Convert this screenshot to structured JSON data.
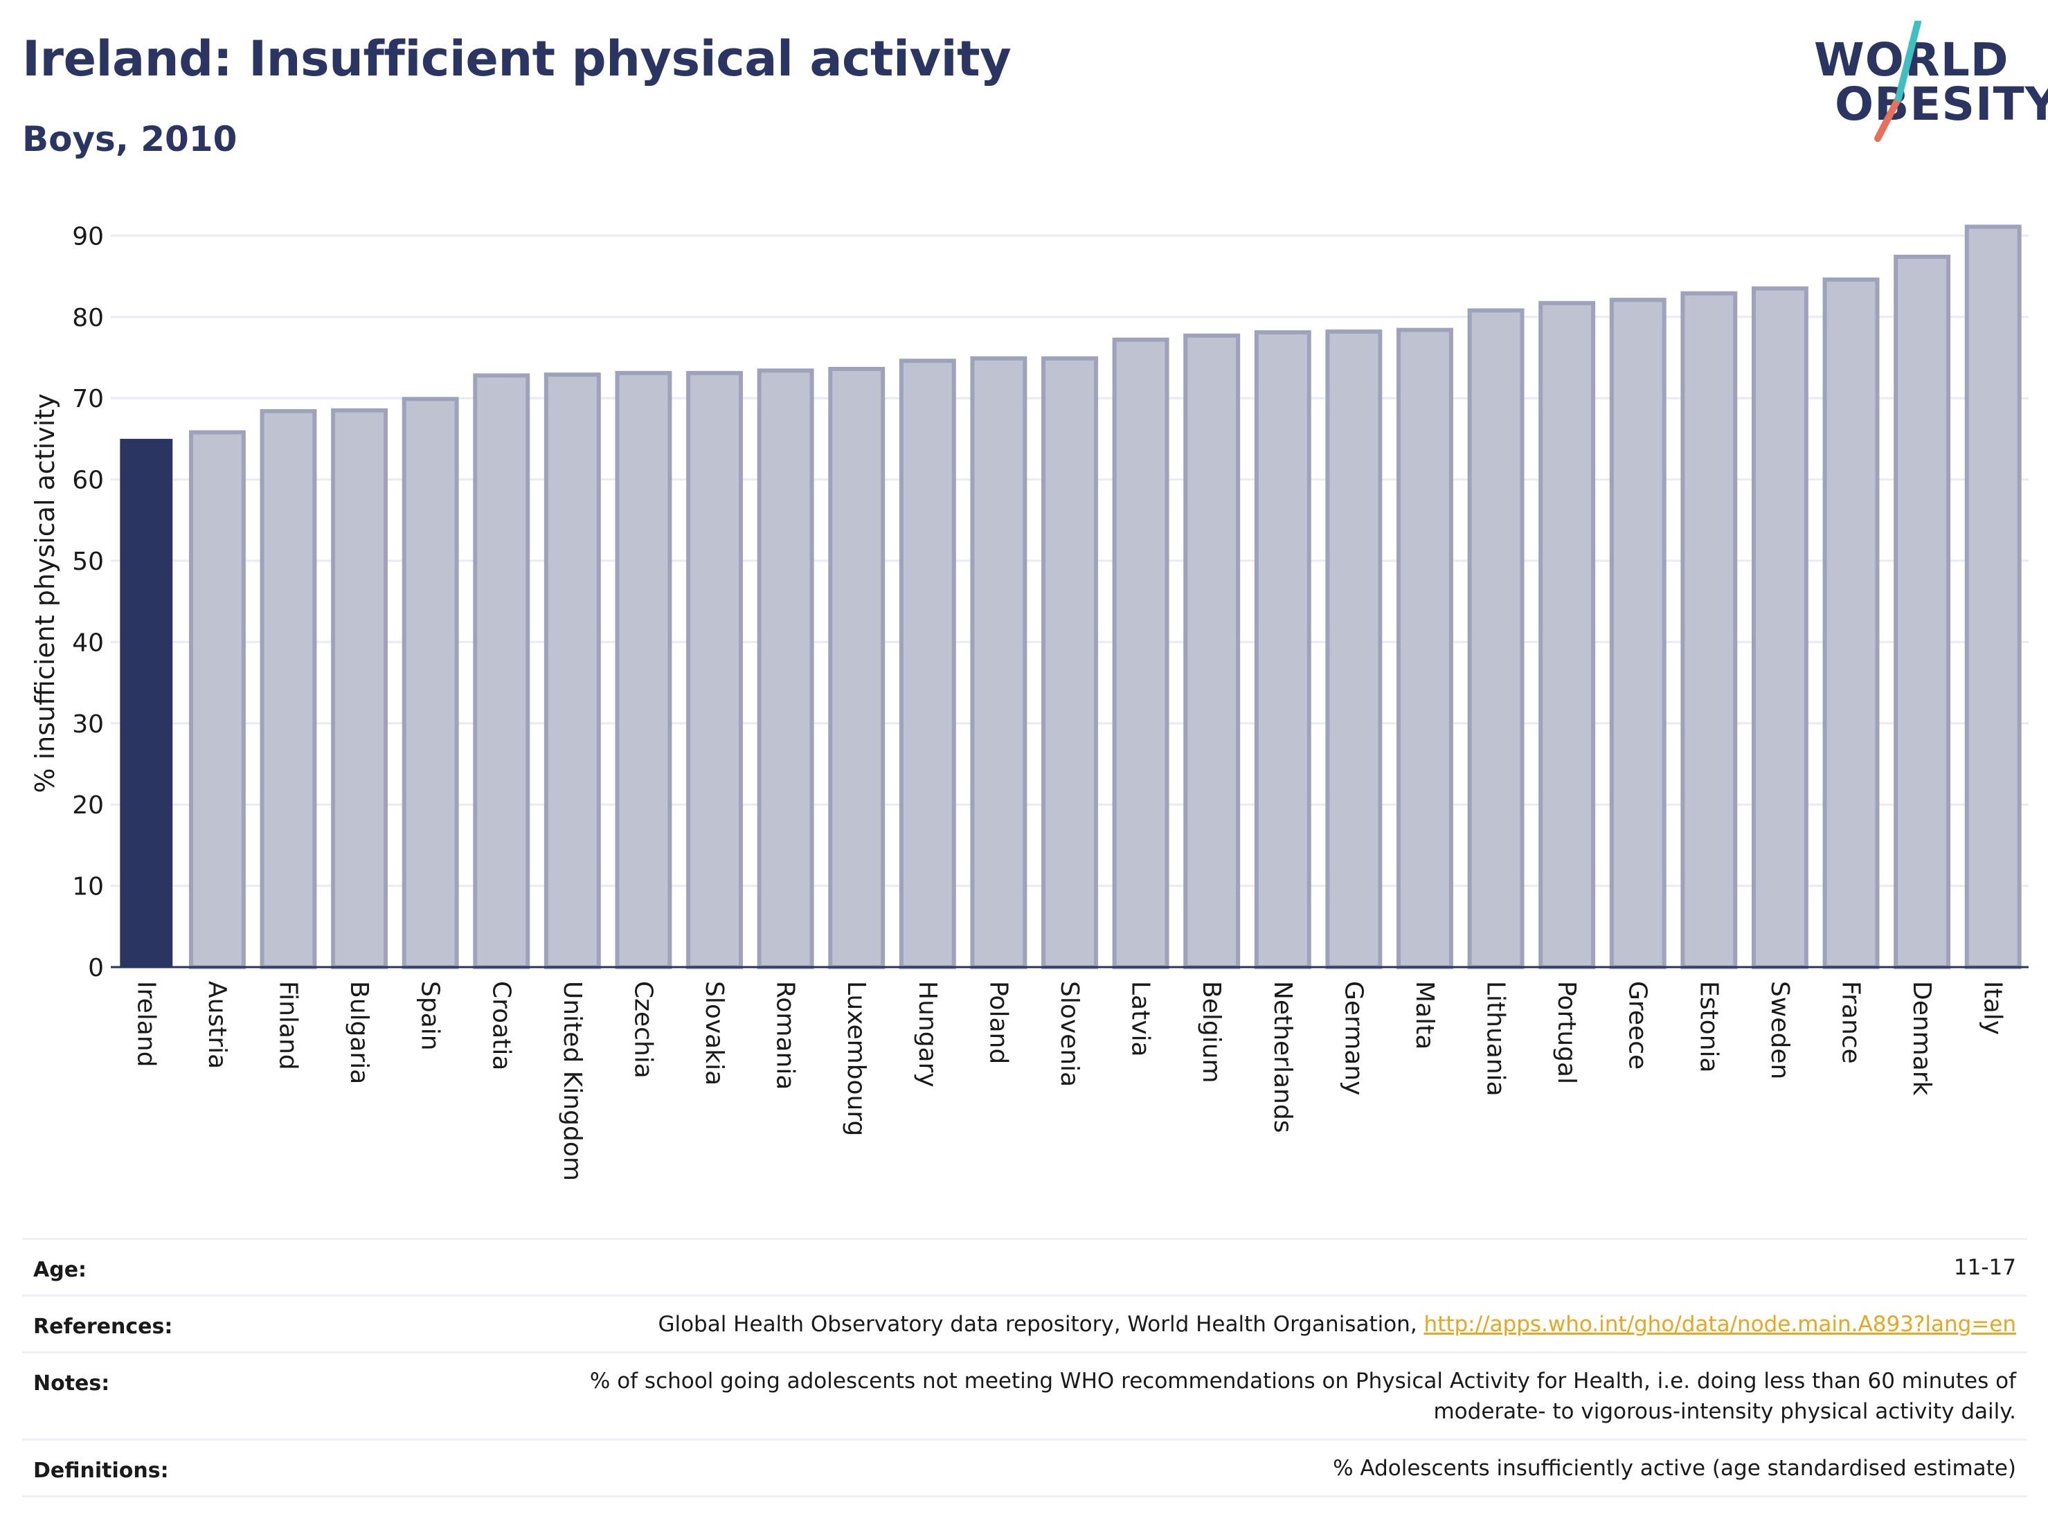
{
  "header": {
    "title": "Ireland: Insufficient physical activity",
    "subtitle": "Boys, 2010"
  },
  "logo": {
    "line1": "WORLD",
    "line2": "OBESITY",
    "colors": {
      "text": "#2b3561",
      "slash_teal": "#3fbfbf",
      "slash_coral": "#e8705a"
    }
  },
  "colors": {
    "highlight_bar": "#2b3561",
    "bar_fill": "#bfc2d0",
    "bar_stroke": "#9ea3bb",
    "link": "#e8a623"
  },
  "chart_data": {
    "type": "bar",
    "title": "Ireland: Insufficient physical activity",
    "subtitle": "Boys, 2010",
    "xlabel": "",
    "ylabel": "% insufficient physical activity",
    "ylim": [
      0,
      92
    ],
    "yticks": [
      0,
      10,
      20,
      30,
      40,
      50,
      60,
      70,
      80,
      90
    ],
    "grid": true,
    "highlight": "Ireland",
    "categories": [
      "Ireland",
      "Austria",
      "Finland",
      "Bulgaria",
      "Spain",
      "Croatia",
      "United Kingdom",
      "Czechia",
      "Slovakia",
      "Romania",
      "Luxembourg",
      "Hungary",
      "Poland",
      "Slovenia",
      "Latvia",
      "Belgium",
      "Netherlands",
      "Germany",
      "Malta",
      "Lithuania",
      "Portugal",
      "Greece",
      "Estonia",
      "Sweden",
      "France",
      "Denmark",
      "Italy"
    ],
    "values": [
      65.0,
      65.8,
      68.4,
      68.5,
      69.9,
      72.8,
      72.9,
      73.1,
      73.1,
      73.4,
      73.6,
      74.6,
      74.9,
      74.9,
      77.2,
      77.7,
      78.1,
      78.2,
      78.4,
      80.8,
      81.7,
      82.1,
      82.9,
      83.5,
      84.6,
      87.4,
      91.1
    ]
  },
  "meta": {
    "age_label": "Age:",
    "age_value": "11-17",
    "references_label": "References:",
    "references_text": "Global Health Observatory data repository, World Health Organisation, ",
    "references_link": "http://apps.who.int/gho/data/node.main.A893?lang=en",
    "notes_label": "Notes:",
    "notes_line1": "% of school going adolescents not meeting WHO recommendations on Physical Activity for Health, i.e. doing less than 60 minutes of",
    "notes_line2": "moderate- to vigorous-intensity physical activity daily.",
    "definitions_label": "Definitions:",
    "definitions_value": "% Adolescents insufficiently active (age standardised estimate)"
  }
}
